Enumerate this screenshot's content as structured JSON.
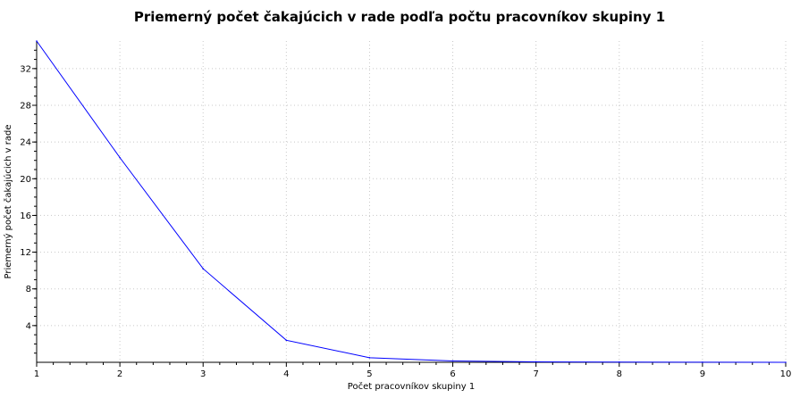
{
  "chart_data": {
    "type": "line",
    "title": "Priemerný počet čakajúcich v rade podľa počtu pracovníkov skupiny 1",
    "xlabel": "Počet pracovníkov skupiny 1",
    "ylabel": "Priemerný počet čakajúcich v rade",
    "xlim": [
      1,
      10
    ],
    "ylim": [
      0,
      35
    ],
    "xticks": [
      1,
      2,
      3,
      4,
      5,
      6,
      7,
      8,
      9,
      10
    ],
    "yticks": [
      4,
      8,
      12,
      16,
      20,
      24,
      28,
      32
    ],
    "grid": true,
    "series": [
      {
        "color": "#0000ff",
        "x": [
          1,
          2,
          3,
          4,
          5,
          6,
          7,
          8,
          9,
          10
        ],
        "y": [
          35.0,
          22.3,
          10.2,
          2.4,
          0.5,
          0.15,
          0.05,
          0.02,
          0.01,
          0.0
        ]
      }
    ]
  }
}
